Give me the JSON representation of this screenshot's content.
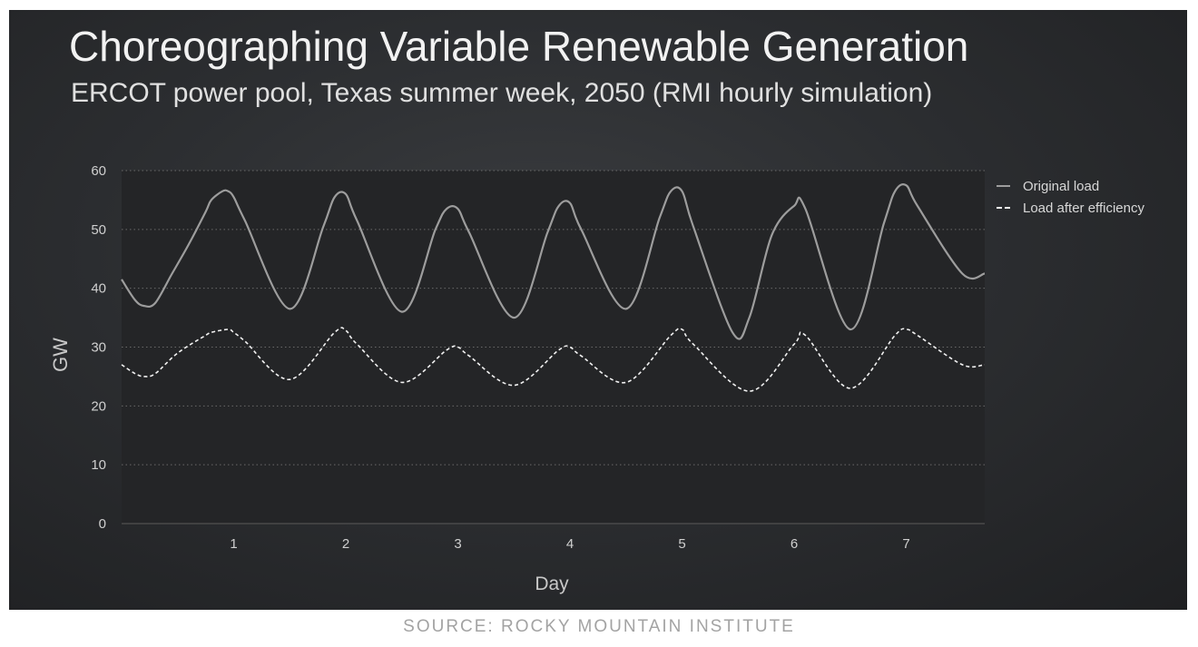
{
  "caption": "SOURCE: ROCKY MOUNTAIN INSTITUTE",
  "colors": {
    "background": "#2c2e31",
    "plot_area": "#242527",
    "original_load": "#9d9d9d",
    "efficiency_load": "#f2f2f2",
    "text": "#e6e6e6",
    "axis_text": "#d0d0d0",
    "caption": "#a3a3a3"
  },
  "chart_data": {
    "type": "line",
    "title": "Choreographing Variable Renewable Generation",
    "subtitle": "ERCOT power pool, Texas summer week, 2050 (RMI hourly simulation)",
    "xlabel": "Day",
    "ylabel": "GW",
    "xlim": [
      0,
      7.7
    ],
    "ylim": [
      0,
      60
    ],
    "y_ticks": [
      0,
      10,
      20,
      30,
      40,
      50,
      60
    ],
    "x_ticks": [
      1,
      2,
      3,
      4,
      5,
      6,
      7
    ],
    "grid": "horizontal dotted",
    "legend_position": "top-right",
    "series": [
      {
        "name": "Original load",
        "style": "solid",
        "x": [
          0.0,
          0.12,
          0.2,
          0.3,
          0.45,
          0.6,
          0.75,
          0.8,
          0.9,
          0.95,
          1.0,
          1.1,
          1.5,
          1.8,
          1.9,
          2.0,
          2.1,
          2.5,
          2.8,
          2.9,
          3.0,
          3.1,
          3.5,
          3.8,
          3.9,
          4.0,
          4.1,
          4.5,
          4.8,
          4.9,
          5.0,
          5.1,
          5.45,
          5.6,
          5.8,
          6.0,
          6.1,
          6.5,
          6.8,
          6.9,
          7.0,
          7.1,
          7.5,
          7.7
        ],
        "y": [
          41.5,
          38.0,
          37.0,
          37.5,
          42.5,
          47.5,
          53.0,
          55.0,
          56.5,
          56.5,
          55.5,
          51.5,
          36.5,
          50.5,
          55.5,
          56.0,
          51.5,
          36.0,
          50.0,
          53.5,
          53.5,
          49.5,
          35.0,
          49.5,
          54.0,
          54.5,
          50.0,
          36.5,
          52.0,
          56.5,
          56.5,
          50.5,
          32.5,
          35.0,
          49.0,
          54.0,
          53.5,
          33.0,
          51.0,
          56.5,
          57.5,
          54.0,
          42.5,
          42.5
        ]
      },
      {
        "name": "Load after efficiency",
        "style": "dashed",
        "x": [
          0.0,
          0.12,
          0.2,
          0.3,
          0.5,
          0.75,
          0.8,
          0.95,
          1.0,
          1.1,
          1.5,
          1.9,
          2.0,
          2.1,
          2.5,
          2.9,
          3.0,
          3.1,
          3.5,
          3.9,
          4.0,
          4.1,
          4.5,
          4.9,
          5.0,
          5.1,
          5.6,
          6.0,
          6.1,
          6.5,
          6.9,
          7.0,
          7.1,
          7.5,
          7.7
        ],
        "y": [
          27.0,
          25.5,
          25.0,
          25.5,
          29.0,
          32.0,
          32.5,
          33.0,
          32.5,
          31.0,
          24.5,
          32.5,
          32.8,
          30.5,
          24.0,
          29.5,
          30.0,
          28.5,
          23.5,
          29.5,
          30.0,
          28.5,
          24.0,
          32.0,
          33.0,
          30.5,
          22.5,
          30.5,
          32.0,
          23.0,
          32.0,
          33.0,
          32.0,
          27.0,
          27.0
        ]
      }
    ]
  }
}
